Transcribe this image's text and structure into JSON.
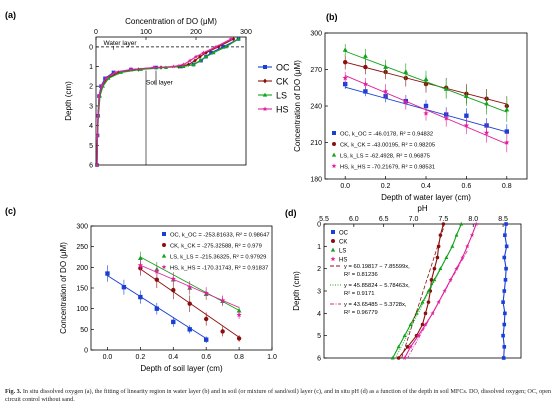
{
  "caption": {
    "label": "Fig. 3.",
    "text": "In situ dissolved oxygen (a), the fitting of linearity region in water layer (b) and in soil (or mixture of sand/soil) layer (c), and in situ pH (d) as a function of the depth in soil MFCs. DO, dissolved oxygen; OC, open circuit control without sand."
  },
  "colors": {
    "OC": "#1a3fd6",
    "CK": "#8b0f0f",
    "LS": "#11a31b",
    "HS": "#e0219a"
  },
  "chart_data": [
    {
      "panel": "(a)",
      "type": "line",
      "title": "",
      "xlabel": "Concentration of DO (μM)",
      "ylabel": "Depth (cm)",
      "xlim": [
        0,
        300
      ],
      "ylim": [
        -0.5,
        6
      ],
      "x_ticks": [
        "0",
        "100",
        "200",
        "300"
      ],
      "y_ticks": [
        "0",
        "1",
        "2",
        "3",
        "4",
        "5",
        "6"
      ],
      "x_axis_position": "top",
      "y_inverted": true,
      "annotations": [
        {
          "text": "Water layer",
          "x": 15,
          "y": -0.1,
          "arrow_to_y": 0.15
        },
        {
          "text": "Soil layer",
          "x": 100,
          "y": 1.9,
          "arrow_to_y": 1.2
        }
      ],
      "reference_line": {
        "y": 0,
        "style": "dashed"
      },
      "vertical_marker": {
        "x": 100,
        "y_range": [
          1.2,
          6
        ]
      },
      "legend": {
        "position": "right",
        "entries": [
          "OC",
          "CK",
          "LS",
          "HS"
        ]
      },
      "series": [
        {
          "name": "OC",
          "marker": "square",
          "x": [
            285,
            255,
            230,
            220,
            210,
            195,
            170,
            120,
            70,
            35,
            18,
            10,
            6,
            4,
            3,
            2
          ],
          "y": [
            -0.4,
            0,
            0.3,
            0.5,
            0.7,
            0.9,
            1.0,
            1.05,
            1.15,
            1.3,
            1.6,
            2.0,
            2.5,
            3.5,
            4.5,
            6
          ]
        },
        {
          "name": "CK",
          "marker": "diamond",
          "x": [
            275,
            245,
            220,
            208,
            198,
            185,
            165,
            130,
            85,
            45,
            22,
            12,
            7,
            4,
            3,
            2
          ],
          "y": [
            -0.4,
            0,
            0.3,
            0.5,
            0.7,
            0.9,
            1.0,
            1.05,
            1.15,
            1.3,
            1.6,
            2.0,
            2.5,
            3.5,
            4.5,
            6
          ]
        },
        {
          "name": "LS",
          "marker": "triangle",
          "x": [
            285,
            260,
            235,
            220,
            208,
            195,
            175,
            140,
            90,
            50,
            25,
            14,
            8,
            5,
            3,
            2
          ],
          "y": [
            -0.4,
            0,
            0.3,
            0.5,
            0.7,
            0.9,
            1.0,
            1.05,
            1.15,
            1.3,
            1.6,
            2.0,
            2.5,
            3.5,
            4.5,
            6
          ]
        },
        {
          "name": "HS",
          "marker": "star",
          "x": [
            270,
            240,
            215,
            200,
            188,
            175,
            155,
            115,
            70,
            38,
            20,
            11,
            6,
            4,
            3,
            2
          ],
          "y": [
            -0.4,
            0,
            0.3,
            0.5,
            0.7,
            0.9,
            1.0,
            1.05,
            1.15,
            1.3,
            1.6,
            2.0,
            2.5,
            3.5,
            4.5,
            6
          ]
        }
      ]
    },
    {
      "panel": "(b)",
      "type": "scatter",
      "title": "",
      "xlabel": "Depth of water layer (cm)",
      "ylabel": "Concentration of DO (μM)",
      "xlim": [
        -0.1,
        0.9
      ],
      "ylim": [
        180,
        300
      ],
      "x_ticks": [
        "0.0",
        "0.2",
        "0.4",
        "0.6",
        "0.8"
      ],
      "y_ticks": [
        "180",
        "210",
        "240",
        "270",
        "300"
      ],
      "legend": {
        "position": "bottom-left"
      },
      "series": [
        {
          "name": "OC",
          "marker": "square",
          "legend_text": "OC, k_OC = -46.0178, R² = 0.94832",
          "x": [
            0,
            0.1,
            0.2,
            0.3,
            0.4,
            0.5,
            0.6,
            0.7,
            0.8
          ],
          "y": [
            258,
            252,
            248,
            244,
            240,
            233,
            232,
            224,
            219
          ],
          "err": [
            4,
            4,
            5,
            5,
            5,
            6,
            6,
            6,
            6
          ],
          "fit": [
            0,
            0.8,
            255.5,
            218.7
          ]
        },
        {
          "name": "CK",
          "marker": "circle",
          "legend_text": "CK, k_CK = -43.00195, R² = 0.98205",
          "x": [
            0,
            0.1,
            0.2,
            0.3,
            0.4,
            0.5,
            0.6,
            0.7,
            0.8
          ],
          "y": [
            276,
            272,
            268,
            263,
            258,
            255,
            250,
            246,
            240
          ],
          "err": [
            6,
            6,
            6,
            7,
            7,
            8,
            8,
            8,
            8
          ],
          "fit": [
            0,
            0.8,
            276,
            241.6
          ]
        },
        {
          "name": "LS",
          "marker": "triangle",
          "legend_text": "LS, k_LS = -62.4928, R² = 0.96875",
          "x": [
            0,
            0.1,
            0.2,
            0.3,
            0.4,
            0.5,
            0.6,
            0.7,
            0.8
          ],
          "y": [
            286,
            281,
            272,
            268,
            262,
            254,
            248,
            242,
            237
          ],
          "err": [
            5,
            6,
            6,
            7,
            7,
            8,
            8,
            9,
            10
          ],
          "fit": [
            0,
            0.8,
            285,
            235
          ]
        },
        {
          "name": "HS",
          "marker": "star",
          "legend_text": "HS, k_HS = -70.21679, R² = 0.98531",
          "x": [
            0,
            0.1,
            0.2,
            0.3,
            0.4,
            0.5,
            0.6,
            0.7,
            0.8
          ],
          "y": [
            263,
            258,
            252,
            243,
            234,
            230,
            224,
            218,
            210
          ],
          "err": [
            5,
            5,
            6,
            6,
            6,
            7,
            7,
            8,
            8
          ],
          "fit": [
            0,
            0.8,
            265,
            208.8
          ]
        }
      ]
    },
    {
      "panel": "(c)",
      "type": "scatter",
      "title": "",
      "xlabel": "Depth of soil layer (cm)",
      "ylabel": "Concentration of DO (μM)",
      "xlim": [
        -0.1,
        1.0
      ],
      "ylim": [
        0,
        300
      ],
      "x_ticks": [
        "0.0",
        "0.2",
        "0.4",
        "0.6",
        "0.8",
        "1.0"
      ],
      "y_ticks": [
        "0",
        "50",
        "100",
        "150",
        "200",
        "250",
        "300"
      ],
      "legend": {
        "position": "top-right"
      },
      "series": [
        {
          "name": "OC",
          "marker": "square",
          "legend_text": "OC, k_OC = -253.81633, R² = 0.98647",
          "x": [
            0,
            0.1,
            0.2,
            0.3,
            0.4,
            0.5,
            0.6
          ],
          "y": [
            185,
            152,
            128,
            100,
            68,
            50,
            25
          ],
          "err": [
            20,
            18,
            16,
            14,
            12,
            10,
            8
          ],
          "fit": [
            0,
            0.6,
            180,
            27.7
          ]
        },
        {
          "name": "CK",
          "marker": "circle",
          "legend_text": "CK, k_CK = -275.32588, R² = 0.979",
          "x": [
            0.2,
            0.3,
            0.4,
            0.5,
            0.6,
            0.7,
            0.8
          ],
          "y": [
            198,
            170,
            145,
            112,
            75,
            45,
            28
          ],
          "err": [
            18,
            20,
            22,
            20,
            16,
            12,
            8
          ],
          "fit": [
            0.2,
            0.8,
            196,
            30.8
          ]
        },
        {
          "name": "LS",
          "marker": "triangle",
          "legend_text": "LS, k_LS = -215.36325, R² = 0.97929",
          "x": [
            0.2,
            0.3,
            0.4,
            0.5,
            0.6,
            0.7,
            0.8
          ],
          "y": [
            222,
            195,
            170,
            150,
            135,
            118,
            95
          ],
          "err": [
            16,
            18,
            18,
            16,
            14,
            12,
            10
          ],
          "fit": [
            0.2,
            0.8,
            225,
            95.8
          ]
        },
        {
          "name": "HS",
          "marker": "star",
          "legend_text": "HS, k_HS = -170.31743, R² = 0.91837",
          "x": [
            0.2,
            0.3,
            0.4,
            0.5,
            0.6,
            0.7,
            0.8
          ],
          "y": [
            205,
            190,
            172,
            152,
            138,
            120,
            85
          ],
          "err": [
            15,
            15,
            16,
            15,
            14,
            12,
            10
          ],
          "fit": [
            0.2,
            0.8,
            205,
            102.8
          ]
        }
      ]
    },
    {
      "panel": "(d)",
      "type": "line",
      "title": "",
      "xlabel": "pH",
      "ylabel": "Depth (cm)",
      "xlim": [
        5.5,
        8.8
      ],
      "ylim": [
        0,
        6
      ],
      "x_ticks": [
        "5.5",
        "6.0",
        "6.5",
        "7.0",
        "7.5",
        "8.0",
        "8.5"
      ],
      "y_ticks": [
        "0",
        "1",
        "2",
        "3",
        "4",
        "5",
        "6"
      ],
      "x_axis_position": "top",
      "y_inverted": true,
      "legend": {
        "position": "top-left",
        "entries": [
          "OC",
          "CK",
          "LS",
          "HS"
        ]
      },
      "fit_legend": [
        {
          "style": "dashed",
          "color": "#8b0f0f",
          "eq": "y = 60.19817 − 7.85599x,",
          "r2": "R² = 0.81236"
        },
        {
          "style": "dotted",
          "color": "#11a31b",
          "eq": "y = 45.85824 − 5.78463x,",
          "r2": "R² = 0.9171"
        },
        {
          "style": "dashdot",
          "color": "#e0219a",
          "eq": "y = 43.65485 − 5.3728x,",
          "r2": "R² = 0.96779"
        }
      ],
      "series": [
        {
          "name": "OC",
          "marker": "square",
          "x": [
            8.55,
            8.53,
            8.56,
            8.52,
            8.55,
            8.54,
            8.52,
            8.5,
            8.53,
            8.52,
            8.5,
            8.52,
            8.51
          ],
          "y": [
            0,
            0.5,
            1.0,
            1.5,
            2.0,
            2.5,
            3.0,
            3.5,
            4.0,
            4.5,
            5.0,
            5.5,
            6.0
          ]
        },
        {
          "name": "CK",
          "marker": "circle",
          "x": [
            7.5,
            7.45,
            7.42,
            7.4,
            7.35,
            7.3,
            7.28,
            7.25,
            7.2,
            7.15,
            7.05,
            6.9,
            6.75
          ],
          "y": [
            0,
            0.5,
            1.0,
            1.5,
            2.0,
            2.5,
            3.0,
            3.5,
            4.0,
            4.5,
            5.0,
            5.5,
            6.0
          ]
        },
        {
          "name": "LS",
          "marker": "triangle",
          "x": [
            7.8,
            7.72,
            7.65,
            7.55,
            7.45,
            7.35,
            7.25,
            7.15,
            7.05,
            6.95,
            6.85,
            6.75,
            6.65
          ],
          "y": [
            0,
            0.5,
            1.0,
            1.5,
            2.0,
            2.5,
            3.0,
            3.5,
            4.0,
            4.5,
            5.0,
            5.5,
            6.0
          ]
        },
        {
          "name": "HS",
          "marker": "star",
          "x": [
            8.05,
            7.98,
            7.9,
            7.82,
            7.72,
            7.62,
            7.52,
            7.42,
            7.32,
            7.2,
            7.08,
            6.95,
            6.85
          ],
          "y": [
            0,
            0.5,
            1.0,
            1.5,
            2.0,
            2.5,
            3.0,
            3.5,
            4.0,
            4.5,
            5.0,
            5.5,
            6.0
          ]
        }
      ]
    }
  ]
}
